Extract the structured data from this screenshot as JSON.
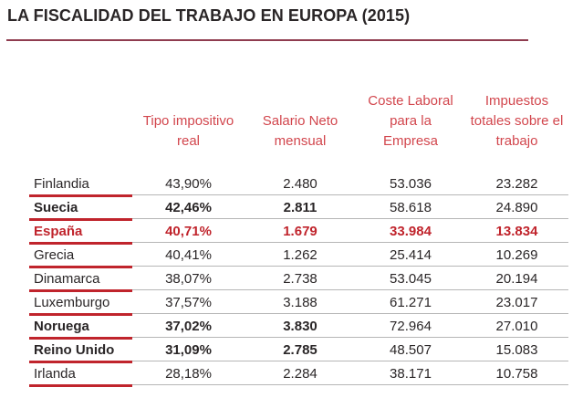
{
  "title": "LA FISCALIDAD DEL TRABAJO EN EUROPA (2015)",
  "colors": {
    "accent_red": "#c0242c",
    "header_red": "#d2464d",
    "title_rule": "#8f3c4f",
    "grid_gray": "#b6b6b6",
    "text_dark": "#2a2627"
  },
  "table": {
    "headers": [
      {
        "lines": [
          "Tipo impositivo",
          "real"
        ]
      },
      {
        "lines": [
          "Salario Neto",
          "mensual"
        ]
      },
      {
        "lines": [
          "Coste Laboral",
          "para la",
          "Empresa"
        ]
      },
      {
        "lines": [
          "Impuestos",
          "totales sobre el",
          "trabajo"
        ]
      }
    ]
  },
  "chart_data": {
    "type": "table",
    "title": "LA FISCALIDAD DEL TRABAJO EN EUROPA (2015)",
    "columns": [
      "",
      "Tipo impositivo real",
      "Salario Neto mensual",
      "Coste Laboral para la Empresa",
      "Impuestos totales sobre el trabajo"
    ],
    "rows": [
      {
        "country": "Finlandia",
        "values": [
          "43,90%",
          "2.480",
          "53.036",
          "23.282"
        ],
        "emphasis": "none"
      },
      {
        "country": "Suecia",
        "values": [
          "42,46%",
          "2.811",
          "58.618",
          "24.890"
        ],
        "emphasis": "bold"
      },
      {
        "country": "España",
        "values": [
          "40,71%",
          "1.679",
          "33.984",
          "13.834"
        ],
        "emphasis": "highlight"
      },
      {
        "country": "Grecia",
        "values": [
          "40,41%",
          "1.262",
          "25.414",
          "10.269"
        ],
        "emphasis": "none"
      },
      {
        "country": "Dinamarca",
        "values": [
          "38,07%",
          "2.738",
          "53.045",
          "20.194"
        ],
        "emphasis": "none"
      },
      {
        "country": "Luxemburgo",
        "values": [
          "37,57%",
          "3.188",
          "61.271",
          "23.017"
        ],
        "emphasis": "none"
      },
      {
        "country": "Noruega",
        "values": [
          "37,02%",
          "3.830",
          "72.964",
          "27.010"
        ],
        "emphasis": "bold"
      },
      {
        "country": "Reino Unido",
        "values": [
          "31,09%",
          "2.785",
          "48.507",
          "15.083"
        ],
        "emphasis": "bold"
      },
      {
        "country": "Irlanda",
        "values": [
          "28,18%",
          "2.284",
          "38.171",
          "10.758"
        ],
        "emphasis": "none"
      }
    ],
    "notes": {
      "highlight_row": "España shown in red",
      "bold_rows_scope": "bold applies to country, tax rate and net salary cells"
    }
  }
}
